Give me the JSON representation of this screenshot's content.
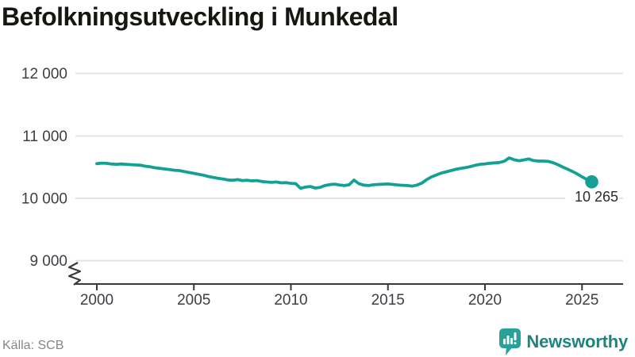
{
  "title": "Befolkningsutveckling i Munkedal",
  "source": "Källa: SCB",
  "logo": {
    "text": "Newsworthy",
    "icon": "newsworthy-bubble-bar-chart-icon"
  },
  "colors": {
    "line": "#14A195",
    "dot": "#14A195",
    "grid": "#E3E3E3",
    "axis": "#3A3A3A",
    "title_text": "#161613",
    "tick_label": "#3E3E44",
    "source_text": "#85858D",
    "logo_icon": "#2AA198",
    "logo_text": "#20837C",
    "background": "#FFFFFF",
    "end_label_text": "#2B2B2B"
  },
  "chart_data": {
    "type": "line",
    "title": "Befolkningsutveckling i Munkedal",
    "xlabel": "",
    "ylabel": "",
    "grid": "horizontal gridlines only",
    "legend_position": "none",
    "axis_break_at_bottom": true,
    "ylim": [
      9000,
      12000
    ],
    "xlim": [
      2000,
      2025.5
    ],
    "x_ticks": [
      2000,
      2005,
      2010,
      2015,
      2020,
      2025
    ],
    "y_ticks": [
      {
        "value": 9000,
        "label": "9 000"
      },
      {
        "value": 10000,
        "label": "10 000"
      },
      {
        "value": 11000,
        "label": "11 000"
      },
      {
        "value": 12000,
        "label": "12 000"
      }
    ],
    "end_label": {
      "text": "10 265",
      "value": 10265,
      "x": 2025.5
    },
    "source": "Källa: SCB",
    "series": [
      {
        "name": "Befolkning i Munkedal",
        "points": [
          [
            2000.0,
            10555
          ],
          [
            2000.25,
            10565
          ],
          [
            2000.5,
            10560
          ],
          [
            2000.75,
            10550
          ],
          [
            2001.0,
            10545
          ],
          [
            2001.25,
            10550
          ],
          [
            2001.5,
            10545
          ],
          [
            2001.75,
            10540
          ],
          [
            2002.0,
            10535
          ],
          [
            2002.25,
            10530
          ],
          [
            2002.5,
            10515
          ],
          [
            2002.75,
            10505
          ],
          [
            2003.0,
            10490
          ],
          [
            2003.25,
            10480
          ],
          [
            2003.5,
            10470
          ],
          [
            2003.75,
            10460
          ],
          [
            2004.0,
            10450
          ],
          [
            2004.25,
            10445
          ],
          [
            2004.5,
            10430
          ],
          [
            2004.75,
            10415
          ],
          [
            2005.0,
            10400
          ],
          [
            2005.25,
            10385
          ],
          [
            2005.5,
            10370
          ],
          [
            2005.75,
            10350
          ],
          [
            2006.0,
            10335
          ],
          [
            2006.25,
            10320
          ],
          [
            2006.5,
            10310
          ],
          [
            2006.75,
            10295
          ],
          [
            2007.0,
            10290
          ],
          [
            2007.25,
            10300
          ],
          [
            2007.5,
            10285
          ],
          [
            2007.75,
            10290
          ],
          [
            2008.0,
            10280
          ],
          [
            2008.25,
            10285
          ],
          [
            2008.5,
            10270
          ],
          [
            2008.75,
            10262
          ],
          [
            2009.0,
            10255
          ],
          [
            2009.25,
            10262
          ],
          [
            2009.5,
            10248
          ],
          [
            2009.75,
            10252
          ],
          [
            2010.0,
            10240
          ],
          [
            2010.25,
            10235
          ],
          [
            2010.5,
            10160
          ],
          [
            2010.75,
            10180
          ],
          [
            2011.0,
            10190
          ],
          [
            2011.25,
            10165
          ],
          [
            2011.5,
            10175
          ],
          [
            2011.75,
            10205
          ],
          [
            2012.0,
            10220
          ],
          [
            2012.25,
            10228
          ],
          [
            2012.5,
            10215
          ],
          [
            2012.75,
            10205
          ],
          [
            2013.0,
            10218
          ],
          [
            2013.25,
            10292
          ],
          [
            2013.5,
            10235
          ],
          [
            2013.75,
            10212
          ],
          [
            2014.0,
            10205
          ],
          [
            2014.25,
            10218
          ],
          [
            2014.5,
            10222
          ],
          [
            2014.75,
            10226
          ],
          [
            2015.0,
            10230
          ],
          [
            2015.25,
            10222
          ],
          [
            2015.5,
            10215
          ],
          [
            2015.75,
            10208
          ],
          [
            2016.0,
            10205
          ],
          [
            2016.25,
            10196
          ],
          [
            2016.5,
            10212
          ],
          [
            2016.75,
            10245
          ],
          [
            2017.0,
            10300
          ],
          [
            2017.25,
            10345
          ],
          [
            2017.5,
            10375
          ],
          [
            2017.75,
            10405
          ],
          [
            2018.0,
            10425
          ],
          [
            2018.25,
            10445
          ],
          [
            2018.5,
            10465
          ],
          [
            2018.75,
            10480
          ],
          [
            2019.0,
            10492
          ],
          [
            2019.25,
            10508
          ],
          [
            2019.5,
            10530
          ],
          [
            2019.75,
            10545
          ],
          [
            2020.0,
            10552
          ],
          [
            2020.25,
            10562
          ],
          [
            2020.5,
            10568
          ],
          [
            2020.75,
            10575
          ],
          [
            2021.0,
            10595
          ],
          [
            2021.25,
            10648
          ],
          [
            2021.5,
            10618
          ],
          [
            2021.75,
            10602
          ],
          [
            2022.0,
            10615
          ],
          [
            2022.25,
            10632
          ],
          [
            2022.5,
            10605
          ],
          [
            2022.75,
            10598
          ],
          [
            2023.0,
            10598
          ],
          [
            2023.25,
            10592
          ],
          [
            2023.5,
            10572
          ],
          [
            2023.75,
            10540
          ],
          [
            2024.0,
            10502
          ],
          [
            2024.25,
            10468
          ],
          [
            2024.5,
            10432
          ],
          [
            2024.75,
            10392
          ],
          [
            2025.0,
            10345
          ],
          [
            2025.25,
            10302
          ],
          [
            2025.5,
            10265
          ]
        ]
      }
    ]
  }
}
